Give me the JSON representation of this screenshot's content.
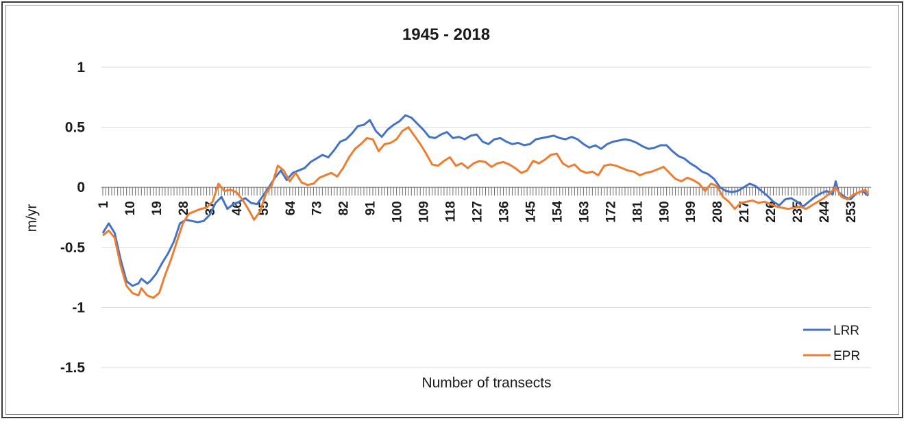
{
  "chart_data": {
    "type": "line",
    "title": "1945 - 2018",
    "xlabel": "Number of transects",
    "ylabel": "m/yr",
    "ylim": [
      -1.5,
      1
    ],
    "xlim": [
      1,
      259
    ],
    "yticks": [
      "1",
      "0.5",
      "0",
      "-0.5",
      "-1",
      "-1.5"
    ],
    "ytick_values": [
      1,
      0.5,
      0,
      -0.5,
      -1,
      -1.5
    ],
    "xticks": [
      "1",
      "10",
      "19",
      "28",
      "37",
      "46",
      "55",
      "64",
      "73",
      "82",
      "91",
      "100",
      "109",
      "118",
      "127",
      "136",
      "145",
      "154",
      "163",
      "172",
      "181",
      "190",
      "199",
      "208",
      "217",
      "226",
      "235",
      "244",
      "253"
    ],
    "xtick_values": [
      1,
      10,
      19,
      28,
      37,
      46,
      55,
      64,
      73,
      82,
      91,
      100,
      109,
      118,
      127,
      136,
      145,
      154,
      163,
      172,
      181,
      190,
      199,
      208,
      217,
      226,
      235,
      244,
      253
    ],
    "grid": true,
    "legend_position": "bottom-right",
    "series": [
      {
        "name": "LRR",
        "color": "#4472C4",
        "points": [
          [
            1,
            -0.38
          ],
          [
            3,
            -0.3
          ],
          [
            5,
            -0.38
          ],
          [
            7,
            -0.6
          ],
          [
            9,
            -0.78
          ],
          [
            11,
            -0.82
          ],
          [
            13,
            -0.8
          ],
          [
            14,
            -0.76
          ],
          [
            16,
            -0.8
          ],
          [
            17,
            -0.78
          ],
          [
            19,
            -0.72
          ],
          [
            21,
            -0.63
          ],
          [
            23,
            -0.55
          ],
          [
            25,
            -0.45
          ],
          [
            27,
            -0.3
          ],
          [
            29,
            -0.27
          ],
          [
            31,
            -0.28
          ],
          [
            33,
            -0.29
          ],
          [
            35,
            -0.28
          ],
          [
            37,
            -0.23
          ],
          [
            39,
            -0.13
          ],
          [
            41,
            -0.08
          ],
          [
            43,
            -0.18
          ],
          [
            45,
            -0.14
          ],
          [
            47,
            -0.12
          ],
          [
            49,
            -0.09
          ],
          [
            51,
            -0.13
          ],
          [
            53,
            -0.14
          ],
          [
            55,
            -0.07
          ],
          [
            57,
            0.0
          ],
          [
            59,
            0.08
          ],
          [
            61,
            0.14
          ],
          [
            63,
            0.06
          ],
          [
            65,
            0.12
          ],
          [
            67,
            0.14
          ],
          [
            69,
            0.16
          ],
          [
            71,
            0.21
          ],
          [
            73,
            0.24
          ],
          [
            75,
            0.27
          ],
          [
            77,
            0.25
          ],
          [
            79,
            0.31
          ],
          [
            81,
            0.38
          ],
          [
            83,
            0.4
          ],
          [
            85,
            0.45
          ],
          [
            87,
            0.51
          ],
          [
            89,
            0.52
          ],
          [
            91,
            0.56
          ],
          [
            93,
            0.47
          ],
          [
            95,
            0.42
          ],
          [
            97,
            0.48
          ],
          [
            99,
            0.52
          ],
          [
            101,
            0.55
          ],
          [
            103,
            0.6
          ],
          [
            105,
            0.58
          ],
          [
            107,
            0.53
          ],
          [
            109,
            0.48
          ],
          [
            111,
            0.42
          ],
          [
            113,
            0.41
          ],
          [
            115,
            0.44
          ],
          [
            117,
            0.46
          ],
          [
            119,
            0.41
          ],
          [
            121,
            0.42
          ],
          [
            123,
            0.4
          ],
          [
            125,
            0.43
          ],
          [
            127,
            0.44
          ],
          [
            129,
            0.38
          ],
          [
            131,
            0.36
          ],
          [
            133,
            0.4
          ],
          [
            135,
            0.41
          ],
          [
            137,
            0.38
          ],
          [
            139,
            0.36
          ],
          [
            141,
            0.37
          ],
          [
            143,
            0.35
          ],
          [
            145,
            0.36
          ],
          [
            147,
            0.4
          ],
          [
            149,
            0.41
          ],
          [
            151,
            0.42
          ],
          [
            153,
            0.43
          ],
          [
            155,
            0.41
          ],
          [
            157,
            0.4
          ],
          [
            159,
            0.42
          ],
          [
            161,
            0.4
          ],
          [
            163,
            0.36
          ],
          [
            165,
            0.33
          ],
          [
            167,
            0.35
          ],
          [
            169,
            0.32
          ],
          [
            171,
            0.36
          ],
          [
            173,
            0.38
          ],
          [
            175,
            0.39
          ],
          [
            177,
            0.4
          ],
          [
            179,
            0.39
          ],
          [
            181,
            0.37
          ],
          [
            183,
            0.34
          ],
          [
            185,
            0.32
          ],
          [
            187,
            0.33
          ],
          [
            189,
            0.35
          ],
          [
            191,
            0.35
          ],
          [
            193,
            0.3
          ],
          [
            195,
            0.26
          ],
          [
            197,
            0.24
          ],
          [
            199,
            0.2
          ],
          [
            201,
            0.17
          ],
          [
            203,
            0.13
          ],
          [
            205,
            0.11
          ],
          [
            207,
            0.07
          ],
          [
            209,
            0.0
          ],
          [
            211,
            -0.03
          ],
          [
            213,
            -0.04
          ],
          [
            215,
            -0.03
          ],
          [
            217,
            0.0
          ],
          [
            219,
            0.03
          ],
          [
            221,
            0.01
          ],
          [
            223,
            -0.03
          ],
          [
            225,
            -0.07
          ],
          [
            227,
            -0.12
          ],
          [
            229,
            -0.15
          ],
          [
            231,
            -0.1
          ],
          [
            233,
            -0.09
          ],
          [
            235,
            -0.12
          ],
          [
            237,
            -0.16
          ],
          [
            239,
            -0.12
          ],
          [
            241,
            -0.08
          ],
          [
            243,
            -0.05
          ],
          [
            245,
            -0.03
          ],
          [
            247,
            -0.06
          ],
          [
            248,
            0.05
          ],
          [
            249,
            -0.04
          ],
          [
            251,
            -0.08
          ],
          [
            253,
            -0.1
          ],
          [
            255,
            -0.05
          ],
          [
            257,
            -0.03
          ],
          [
            259,
            -0.07
          ]
        ]
      },
      {
        "name": "EPR",
        "color": "#ED7D31",
        "points": [
          [
            1,
            -0.4
          ],
          [
            3,
            -0.36
          ],
          [
            5,
            -0.42
          ],
          [
            7,
            -0.65
          ],
          [
            9,
            -0.82
          ],
          [
            11,
            -0.88
          ],
          [
            13,
            -0.9
          ],
          [
            14,
            -0.84
          ],
          [
            16,
            -0.9
          ],
          [
            18,
            -0.92
          ],
          [
            20,
            -0.88
          ],
          [
            22,
            -0.73
          ],
          [
            24,
            -0.6
          ],
          [
            26,
            -0.45
          ],
          [
            28,
            -0.3
          ],
          [
            30,
            -0.22
          ],
          [
            32,
            -0.2
          ],
          [
            34,
            -0.18
          ],
          [
            36,
            -0.17
          ],
          [
            38,
            -0.12
          ],
          [
            40,
            0.03
          ],
          [
            42,
            -0.03
          ],
          [
            44,
            -0.02
          ],
          [
            46,
            -0.04
          ],
          [
            48,
            -0.1
          ],
          [
            50,
            -0.18
          ],
          [
            52,
            -0.27
          ],
          [
            54,
            -0.2
          ],
          [
            56,
            -0.05
          ],
          [
            58,
            0.02
          ],
          [
            60,
            0.18
          ],
          [
            62,
            0.14
          ],
          [
            64,
            0.05
          ],
          [
            66,
            0.12
          ],
          [
            68,
            0.04
          ],
          [
            70,
            0.02
          ],
          [
            72,
            0.03
          ],
          [
            74,
            0.08
          ],
          [
            76,
            0.1
          ],
          [
            78,
            0.12
          ],
          [
            80,
            0.09
          ],
          [
            82,
            0.16
          ],
          [
            84,
            0.25
          ],
          [
            86,
            0.32
          ],
          [
            88,
            0.36
          ],
          [
            90,
            0.41
          ],
          [
            92,
            0.4
          ],
          [
            94,
            0.3
          ],
          [
            96,
            0.36
          ],
          [
            98,
            0.37
          ],
          [
            100,
            0.4
          ],
          [
            102,
            0.47
          ],
          [
            104,
            0.5
          ],
          [
            106,
            0.43
          ],
          [
            108,
            0.36
          ],
          [
            110,
            0.28
          ],
          [
            112,
            0.19
          ],
          [
            114,
            0.18
          ],
          [
            116,
            0.22
          ],
          [
            118,
            0.25
          ],
          [
            120,
            0.18
          ],
          [
            122,
            0.2
          ],
          [
            124,
            0.16
          ],
          [
            126,
            0.2
          ],
          [
            128,
            0.22
          ],
          [
            130,
            0.21
          ],
          [
            132,
            0.17
          ],
          [
            134,
            0.2
          ],
          [
            136,
            0.21
          ],
          [
            138,
            0.19
          ],
          [
            140,
            0.16
          ],
          [
            142,
            0.12
          ],
          [
            144,
            0.14
          ],
          [
            146,
            0.22
          ],
          [
            148,
            0.2
          ],
          [
            150,
            0.23
          ],
          [
            152,
            0.27
          ],
          [
            154,
            0.28
          ],
          [
            156,
            0.2
          ],
          [
            158,
            0.17
          ],
          [
            160,
            0.19
          ],
          [
            162,
            0.14
          ],
          [
            164,
            0.12
          ],
          [
            166,
            0.13
          ],
          [
            168,
            0.1
          ],
          [
            170,
            0.18
          ],
          [
            172,
            0.19
          ],
          [
            174,
            0.18
          ],
          [
            176,
            0.16
          ],
          [
            178,
            0.14
          ],
          [
            180,
            0.13
          ],
          [
            182,
            0.1
          ],
          [
            184,
            0.12
          ],
          [
            186,
            0.13
          ],
          [
            188,
            0.15
          ],
          [
            190,
            0.17
          ],
          [
            192,
            0.12
          ],
          [
            194,
            0.07
          ],
          [
            196,
            0.05
          ],
          [
            198,
            0.08
          ],
          [
            200,
            0.06
          ],
          [
            202,
            0.03
          ],
          [
            204,
            -0.03
          ],
          [
            206,
            0.03
          ],
          [
            208,
            0.01
          ],
          [
            210,
            -0.08
          ],
          [
            212,
            -0.12
          ],
          [
            214,
            -0.18
          ],
          [
            216,
            -0.13
          ],
          [
            218,
            -0.12
          ],
          [
            220,
            -0.11
          ],
          [
            222,
            -0.13
          ],
          [
            224,
            -0.12
          ],
          [
            226,
            -0.14
          ],
          [
            228,
            -0.16
          ],
          [
            230,
            -0.17
          ],
          [
            232,
            -0.18
          ],
          [
            234,
            -0.17
          ],
          [
            236,
            -0.16
          ],
          [
            238,
            -0.18
          ],
          [
            240,
            -0.15
          ],
          [
            242,
            -0.12
          ],
          [
            244,
            -0.09
          ],
          [
            246,
            -0.05
          ],
          [
            248,
            0.0
          ],
          [
            250,
            -0.08
          ],
          [
            252,
            -0.1
          ],
          [
            254,
            -0.06
          ],
          [
            256,
            -0.04
          ],
          [
            258,
            -0.02
          ],
          [
            259,
            -0.06
          ]
        ]
      }
    ]
  }
}
